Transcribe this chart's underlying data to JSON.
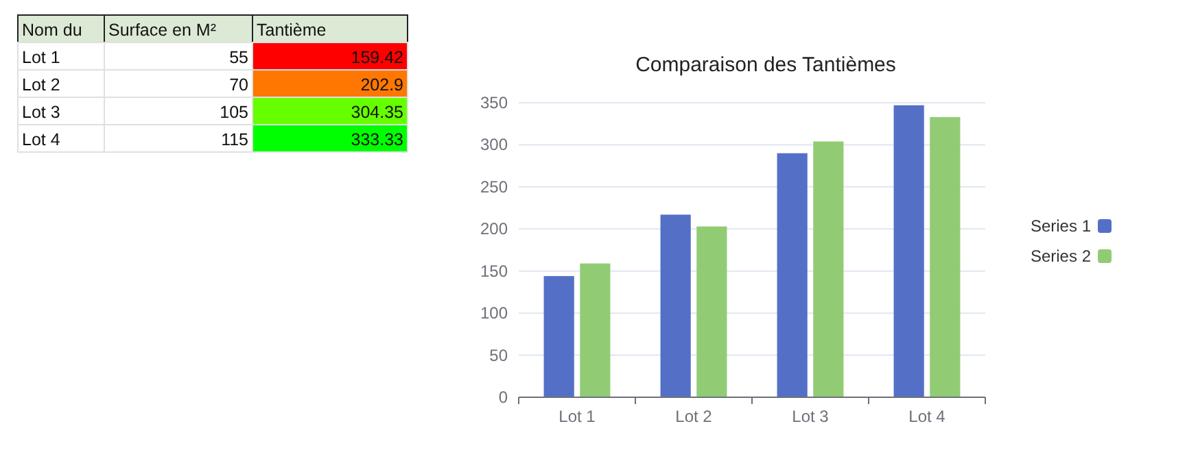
{
  "chart_data": [
    {
      "type": "other",
      "xlabel": "Nom du",
      "data_labels": true,
      "categories": [
        "Lot 1",
        "Lot 2",
        "Lot 3",
        "Lot 4"
      ],
      "series": [
        {
          "name": "Surface en M²",
          "values": [
            55,
            70,
            105,
            115
          ]
        },
        {
          "name": "Tantième",
          "values": [
            159.42,
            202.9,
            304.35,
            333.33
          ],
          "colors": [
            "#ff0000",
            "#ff7700",
            "#66ff00",
            "#00ff00"
          ]
        }
      ]
    },
    {
      "type": "bar",
      "title": "Comparaison des Tantièmes",
      "categories": [
        "Lot 1",
        "Lot 2",
        "Lot 3",
        "Lot 4"
      ],
      "series": [
        {
          "name": "Series 1",
          "color": "#5470c6",
          "values": [
            144,
            217,
            290,
            347
          ]
        },
        {
          "name": "Series 2",
          "color": "#91cc75",
          "values": [
            159,
            203,
            304,
            333
          ]
        }
      ],
      "ylim": [
        0,
        350
      ],
      "yticks": [
        0,
        50,
        100,
        150,
        200,
        250,
        300,
        350
      ],
      "grid": "y",
      "legend": "right"
    }
  ]
}
